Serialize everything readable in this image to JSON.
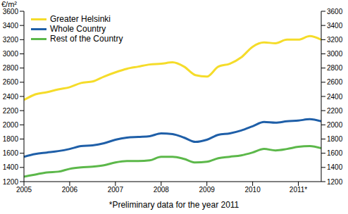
{
  "chart_data": {
    "type": "line",
    "y_label": "€/m²",
    "note": "*Preliminary data for the year 2011",
    "legend": "top-left",
    "grid": false,
    "x": [
      2005,
      2005.25,
      2005.5,
      2005.75,
      2006,
      2006.25,
      2006.5,
      2006.75,
      2007,
      2007.25,
      2007.5,
      2007.75,
      2008,
      2008.25,
      2008.5,
      2008.75,
      2009,
      2009.25,
      2009.5,
      2009.75,
      2010,
      2010.25,
      2010.5,
      2010.75,
      2011,
      2011.25,
      2011.5
    ],
    "xlim": [
      2005,
      2011.5
    ],
    "xticks": [
      2005,
      2006,
      2007,
      2008,
      2009,
      2010,
      {
        "value": 2011,
        "label": "2011*"
      }
    ],
    "ylim": [
      1200,
      3600
    ],
    "yticks": [
      1200,
      1400,
      1600,
      1800,
      2000,
      2200,
      2400,
      2600,
      2800,
      3000,
      3200,
      3400,
      3600
    ],
    "y2lim": [
      1200,
      3600
    ],
    "y2ticks": [
      1200,
      1400,
      1600,
      1800,
      2000,
      2200,
      2400,
      2600,
      2800,
      3000,
      3200,
      3400,
      3600
    ],
    "series": [
      {
        "name": "Greater Helsinki",
        "color": "#f5dc2a",
        "values": [
          2350,
          2430,
          2460,
          2500,
          2530,
          2590,
          2610,
          2680,
          2740,
          2790,
          2820,
          2850,
          2860,
          2880,
          2820,
          2700,
          2680,
          2820,
          2860,
          2950,
          3100,
          3160,
          3150,
          3200,
          3200,
          3250,
          3200
        ]
      },
      {
        "name": "Whole Country",
        "color": "#1f5fa8",
        "values": [
          1550,
          1590,
          1610,
          1630,
          1660,
          1700,
          1710,
          1740,
          1790,
          1820,
          1830,
          1840,
          1880,
          1870,
          1820,
          1760,
          1790,
          1860,
          1880,
          1920,
          1980,
          2040,
          2030,
          2050,
          2060,
          2080,
          2050
        ]
      },
      {
        "name": "Rest of the Country",
        "color": "#5cb84a",
        "values": [
          1270,
          1300,
          1330,
          1340,
          1380,
          1400,
          1410,
          1430,
          1470,
          1490,
          1490,
          1500,
          1550,
          1550,
          1520,
          1470,
          1480,
          1530,
          1550,
          1570,
          1610,
          1660,
          1640,
          1660,
          1690,
          1700,
          1670
        ]
      }
    ]
  }
}
